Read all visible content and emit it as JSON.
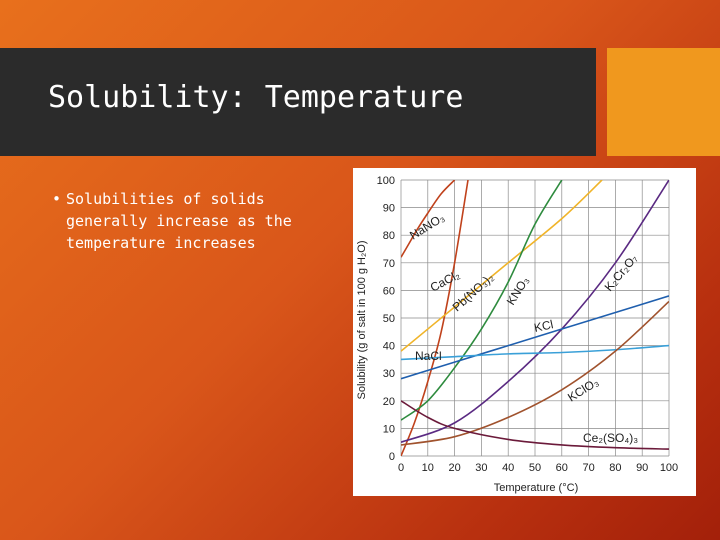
{
  "slide": {
    "title": "Solubility: Temperature",
    "bullets": [
      "Solubilities of solids generally increase as the temperature increases"
    ]
  },
  "chart_data": {
    "type": "line",
    "xlabel": "Temperature (°C)",
    "ylabel": "Solubility (g of salt in 100 g H₂O)",
    "xlim": [
      0,
      100
    ],
    "ylim": [
      0,
      100
    ],
    "xticks": [
      0,
      10,
      20,
      30,
      40,
      50,
      60,
      70,
      80,
      90,
      100
    ],
    "yticks": [
      0,
      10,
      20,
      30,
      40,
      50,
      60,
      70,
      80,
      90,
      100
    ],
    "grid": true,
    "series": [
      {
        "name": "NaNO₃",
        "color": "#c0421c",
        "x": [
          0,
          3,
          6,
          10,
          15,
          20
        ],
        "y": [
          72,
          77,
          82,
          88,
          95,
          100
        ]
      },
      {
        "name": "CaCl₂",
        "color": "#c0421c",
        "x": [
          0,
          5,
          10,
          15,
          20,
          25
        ],
        "y": [
          0,
          12,
          27,
          45,
          70,
          100
        ]
      },
      {
        "name": "Pb(NO₃)₂",
        "color": "#f0b429",
        "x": [
          0,
          20,
          40,
          60,
          75
        ],
        "y": [
          38,
          54,
          70,
          86,
          100
        ]
      },
      {
        "name": "KNO₃",
        "color": "#2e8b3e",
        "x": [
          0,
          10,
          20,
          30,
          40,
          50,
          60
        ],
        "y": [
          13,
          20,
          32,
          46,
          63,
          84,
          100
        ]
      },
      {
        "name": "K₂Cr₂O₇",
        "color": "#5a2a82",
        "x": [
          0,
          20,
          40,
          60,
          80,
          100
        ],
        "y": [
          5,
          12,
          27,
          46,
          70,
          100
        ]
      },
      {
        "name": "KCl",
        "color": "#1f5fae",
        "x": [
          0,
          20,
          40,
          60,
          80,
          100
        ],
        "y": [
          28,
          34,
          40,
          46,
          52,
          58
        ]
      },
      {
        "name": "NaCl",
        "color": "#3aa0d8",
        "x": [
          0,
          20,
          40,
          60,
          80,
          100
        ],
        "y": [
          35,
          36,
          37,
          37.5,
          38.5,
          40
        ]
      },
      {
        "name": "KClO₃",
        "color": "#a0522d",
        "x": [
          0,
          20,
          40,
          60,
          80,
          100
        ],
        "y": [
          4,
          7,
          14,
          24,
          38,
          56
        ]
      },
      {
        "name": "Ce₂(SO₄)₃",
        "color": "#6b1a3a",
        "x": [
          0,
          10,
          20,
          40,
          60,
          80,
          100
        ],
        "y": [
          20,
          14,
          10,
          6,
          4,
          3,
          2.5
        ]
      }
    ],
    "label_texts": {
      "NaNO3": "NaNO₃",
      "CaCl2": "CaCl₂",
      "PbNO3": "Pb(NO₃)₂",
      "KNO3": "KNO₃",
      "K2Cr2O7": "K₂Cr₂O₇",
      "KCl": "KCl",
      "NaCl": "NaCl",
      "KClO3": "KClO₃",
      "Ce2SO4": "Ce₂(SO₄)₃"
    }
  }
}
